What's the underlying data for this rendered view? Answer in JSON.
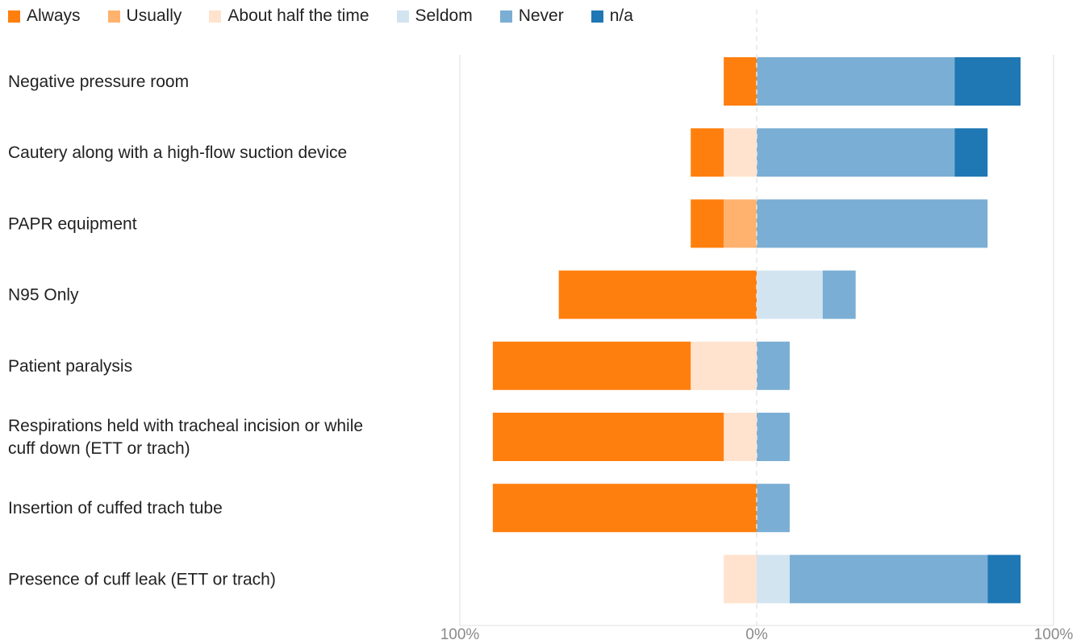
{
  "chart_data": {
    "type": "bar",
    "subtype": "diverging-stacked-horizontal",
    "categories": [
      "Negative pressure room",
      "Cautery along with a high-flow suction device",
      "PAPR equipment",
      "N95 Only",
      "Patient paralysis",
      "Respirations held with tracheal incision or while cuff down (ETT or trach)",
      "Insertion of cuffed trach tube",
      "Presence of cuff leak (ETT or trach)"
    ],
    "series": [
      {
        "name": "Always",
        "color": "#ff7f0e",
        "side": "negative",
        "values": [
          10,
          10,
          10,
          60,
          60,
          70,
          80,
          0
        ]
      },
      {
        "name": "Usually",
        "color": "#ffb26e",
        "side": "negative",
        "values": [
          0,
          0,
          10,
          0,
          0,
          0,
          0,
          0
        ]
      },
      {
        "name": "About half the time",
        "color": "#ffe3ce",
        "side": "negative",
        "values": [
          0,
          10,
          0,
          0,
          20,
          10,
          0,
          10
        ]
      },
      {
        "name": "Seldom",
        "color": "#d3e4f1",
        "side": "positive",
        "values": [
          0,
          0,
          0,
          20,
          0,
          0,
          0,
          10
        ]
      },
      {
        "name": "Never",
        "color": "#7aaed4",
        "side": "positive",
        "values": [
          60,
          60,
          70,
          10,
          10,
          10,
          10,
          60
        ]
      },
      {
        "name": "n/a",
        "color": "#1f77b4",
        "side": "positive",
        "values": [
          20,
          10,
          0,
          0,
          0,
          0,
          0,
          10
        ]
      }
    ],
    "xlim": [
      -90,
      90
    ],
    "xticks": [
      {
        "value": -90,
        "label": "100%"
      },
      {
        "value": 0,
        "label": "0%"
      },
      {
        "value": 90,
        "label": "100%"
      }
    ],
    "legend_position": "top-left",
    "grid": true
  }
}
